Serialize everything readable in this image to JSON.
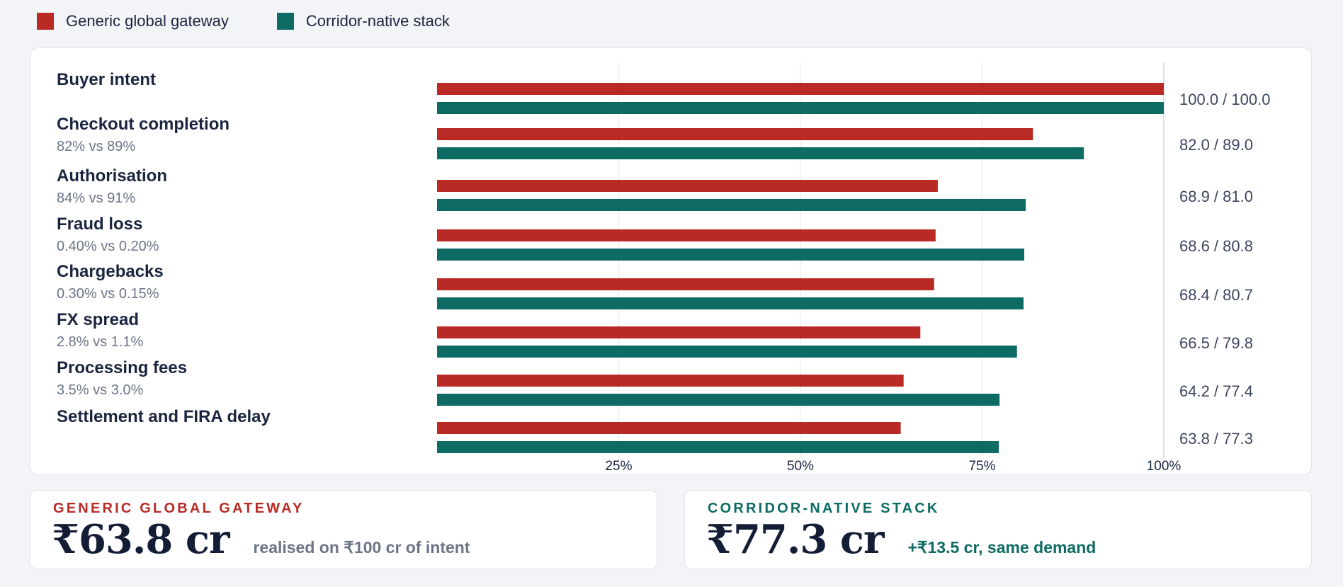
{
  "legend": {
    "items": [
      {
        "label": "Generic global gateway",
        "color": "#b92a25"
      },
      {
        "label": "Corridor-native stack",
        "color": "#0d6b63"
      }
    ]
  },
  "chart_data": {
    "type": "bar",
    "orientation": "horizontal",
    "categories": [
      "Buyer intent",
      "Checkout completion",
      "Authorisation",
      "Fraud loss",
      "Chargebacks",
      "FX spread",
      "Processing fees",
      "Settlement and FIRA delay"
    ],
    "subtitles": [
      "",
      "82% vs 89%",
      "84% vs 91%",
      "0.40% vs 0.20%",
      "0.30% vs 0.15%",
      "2.8% vs 1.1%",
      "3.5% vs 3.0%",
      ""
    ],
    "series": [
      {
        "name": "Generic global gateway",
        "color": "#b92a25",
        "values": [
          100.0,
          82.0,
          68.9,
          68.6,
          68.4,
          66.5,
          64.2,
          63.8
        ]
      },
      {
        "name": "Corridor-native stack",
        "color": "#0d6b63",
        "values": [
          100.0,
          89.0,
          81.0,
          80.8,
          80.7,
          79.8,
          77.4,
          77.3
        ]
      }
    ],
    "value_labels": [
      "100.0 / 100.0",
      "82.0 / 89.0",
      "68.9 / 81.0",
      "68.6 / 80.8",
      "68.4 / 80.7",
      "66.5 / 79.8",
      "64.2 / 77.4",
      "63.8 / 77.3"
    ],
    "x_ticks": [
      "25%",
      "50%",
      "75%",
      "100%"
    ],
    "x_tick_values": [
      25,
      50,
      75,
      100
    ],
    "xlim": [
      0,
      100
    ],
    "grid": true,
    "legend_position": "top-left"
  },
  "summary": {
    "left": {
      "kicker": "GENERIC GLOBAL GATEWAY",
      "value": "₹63.8 cr",
      "note": "realised on ₹100 cr of intent",
      "accent": "#b92a25",
      "note_color": "#6b7487"
    },
    "right": {
      "kicker": "CORRIDOR-NATIVE STACK",
      "value": "₹77.3 cr",
      "note": "+₹13.5 cr, same demand",
      "accent": "#0d6b63",
      "note_color": "#0d6b63"
    }
  }
}
